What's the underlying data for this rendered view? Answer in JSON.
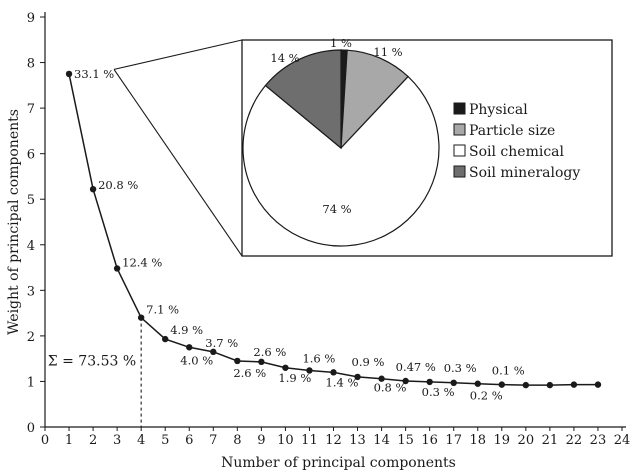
{
  "chart_data": [
    {
      "type": "line",
      "xlabel": "Number of principal components",
      "ylabel": "Weight of principal components",
      "xlim": [
        0,
        24
      ],
      "ylim": [
        0,
        9
      ],
      "x_ticks": [
        "0",
        "1",
        "2",
        "3",
        "4",
        "5",
        "6",
        "7",
        "8",
        "9",
        "10",
        "11",
        "12",
        "13",
        "14",
        "15",
        "16",
        "17",
        "18",
        "19",
        "20",
        "21",
        "22",
        "23",
        "24"
      ],
      "y_ticks": [
        "0",
        "1",
        "2",
        "3",
        "4",
        "5",
        "6",
        "7",
        "8",
        "9"
      ],
      "grid": false,
      "series": [
        {
          "x": [
            1,
            2,
            3,
            4,
            5,
            6,
            7,
            8,
            9,
            10,
            11,
            12,
            13,
            14,
            15,
            16,
            17,
            18,
            19,
            20,
            21,
            22,
            23
          ],
          "values": [
            7.75,
            5.22,
            3.48,
            2.4,
            1.93,
            1.75,
            1.65,
            1.45,
            1.43,
            1.3,
            1.24,
            1.2,
            1.1,
            1.06,
            1.01,
            0.99,
            0.97,
            0.95,
            0.93,
            0.92,
            0.92,
            0.93,
            0.93
          ]
        }
      ],
      "annotations": [
        {
          "text": "33.1 %",
          "x": 1,
          "y": 7.75
        },
        {
          "text": "20.8 %",
          "x": 2,
          "y": 5.22
        },
        {
          "text": "12.4 %",
          "x": 3,
          "y": 3.48
        },
        {
          "text": "7.1 %",
          "x": 4,
          "y": 2.4
        },
        {
          "text": "4.9 %",
          "x": 5,
          "y": 1.93
        },
        {
          "text": "4.0 %",
          "x": 6,
          "y": 1.75
        },
        {
          "text": "3.7 %",
          "x": 7,
          "y": 1.65
        },
        {
          "text": "2.6 %",
          "x": 8,
          "y": 1.45
        },
        {
          "text": "2.6 %",
          "x": 9,
          "y": 1.43
        },
        {
          "text": "1.9 %",
          "x": 10,
          "y": 1.3
        },
        {
          "text": "1.6 %",
          "x": 11,
          "y": 1.24
        },
        {
          "text": "1.4 %",
          "x": 12,
          "y": 1.2
        },
        {
          "text": "0.9 %",
          "x": 13,
          "y": 1.1
        },
        {
          "text": "0.8 %",
          "x": 14,
          "y": 1.06
        },
        {
          "text": "0.47 %",
          "x": 15,
          "y": 1.01
        },
        {
          "text": "0.3 %",
          "x": 16,
          "y": 0.99
        },
        {
          "text": "0.3 %",
          "x": 17,
          "y": 0.97
        },
        {
          "text": "0.2 %",
          "x": 18,
          "y": 0.95
        },
        {
          "text": "0.1 %",
          "x": 19,
          "y": 0.93
        }
      ],
      "cumulative_marker": {
        "text": "Σ = 73.53 %",
        "x": 4
      }
    },
    {
      "type": "pie",
      "slices": [
        {
          "label": "Physical",
          "value": 1,
          "value_label": "1 %",
          "color": "#1a1a1a"
        },
        {
          "label": "Particle size",
          "value": 11,
          "value_label": "11 %",
          "color": "#a8a8a8"
        },
        {
          "label": "Soil chemical",
          "value": 74,
          "value_label": "74 %",
          "color": "#ffffff"
        },
        {
          "label": "Soil mineralogy",
          "value": 14,
          "value_label": "14 %",
          "color": "#6e6e6e"
        }
      ],
      "legend_position": "right"
    }
  ]
}
